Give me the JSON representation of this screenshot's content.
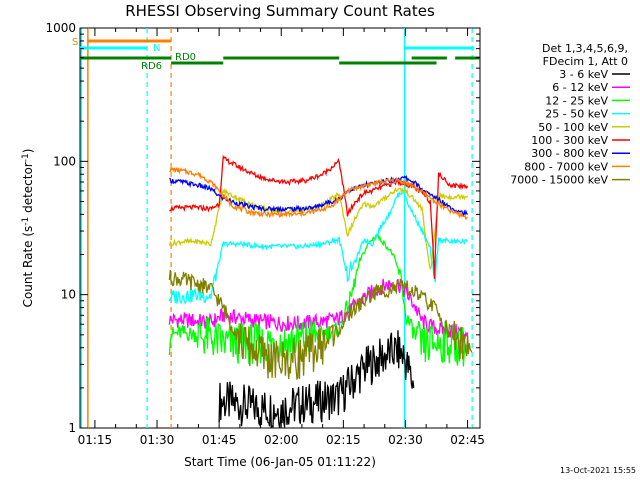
{
  "chart_data": {
    "type": "line",
    "title": "RHESSI Observing Summary Count Rates",
    "xlabel": "Start Time (06-Jan-05 01:11:22)",
    "ylabel_main": "Count Rate (s",
    "ylabel_sup1": "-1",
    "ylabel_mid": " detector",
    "ylabel_sup2": "-1",
    "ylabel_end": ")",
    "y_scale": "log",
    "ylim": [
      1,
      1000
    ],
    "xlim_minutes": [
      71.4,
      168.0
    ],
    "x_ticks": [
      {
        "label": "01:15",
        "minute": 75
      },
      {
        "label": "01:30",
        "minute": 90
      },
      {
        "label": "01:45",
        "minute": 105
      },
      {
        "label": "02:00",
        "minute": 120
      },
      {
        "label": "02:15",
        "minute": 135
      },
      {
        "label": "02:30",
        "minute": 150
      },
      {
        "label": "02:45",
        "minute": 165
      }
    ],
    "y_ticks": [
      {
        "label": "1",
        "value": 1
      },
      {
        "label": "10",
        "value": 10
      },
      {
        "label": "100",
        "value": 100
      },
      {
        "label": "1000",
        "value": 1000
      }
    ],
    "legend_header": [
      "Det 1,3,4,5,6,9,",
      "FDecim 1, Att 0"
    ],
    "legend_placement": "right",
    "series": [
      {
        "name": "3 - 6 keV",
        "color": "#000000",
        "points": [
          [
            105,
            1.6
          ],
          [
            110,
            1.5
          ],
          [
            115,
            1.4
          ],
          [
            120,
            1.4
          ],
          [
            125,
            1.5
          ],
          [
            130,
            1.6
          ],
          [
            134,
            1.7
          ],
          [
            137,
            2.2
          ],
          [
            140,
            2.8
          ],
          [
            143,
            3.2
          ],
          [
            146,
            3.6
          ],
          [
            148,
            3.8
          ],
          [
            149.5,
            3.5
          ],
          [
            151,
            2.6
          ],
          [
            152,
            2.0
          ]
        ]
      },
      {
        "name": "6 - 12 keV",
        "color": "#ff00ff",
        "points": [
          [
            93,
            6.5
          ],
          [
            98,
            6.4
          ],
          [
            103,
            6.2
          ],
          [
            106,
            7.0
          ],
          [
            110,
            6.7
          ],
          [
            115,
            6.3
          ],
          [
            120,
            6.1
          ],
          [
            125,
            6.1
          ],
          [
            130,
            6.3
          ],
          [
            134,
            6.6
          ],
          [
            137,
            7.8
          ],
          [
            140,
            9.5
          ],
          [
            143,
            11
          ],
          [
            146,
            12
          ],
          [
            148,
            12.3
          ],
          [
            150,
            10.5
          ],
          [
            152,
            8.5
          ],
          [
            154,
            6.3
          ],
          [
            156,
            5.8
          ],
          [
            159,
            5.4
          ],
          [
            162,
            5.3
          ],
          [
            165,
            5.2
          ]
        ]
      },
      {
        "name": "12 - 25 keV",
        "color": "#00ff00",
        "points": [
          [
            93,
            5.0
          ],
          [
            96,
            5.2
          ],
          [
            100,
            5.0
          ],
          [
            104,
            4.6
          ],
          [
            106,
            4.3
          ],
          [
            110,
            4.3
          ],
          [
            115,
            4.3
          ],
          [
            120,
            4.4
          ],
          [
            125,
            4.6
          ],
          [
            130,
            5.2
          ],
          [
            134,
            5.5
          ],
          [
            137,
            10
          ],
          [
            139,
            18
          ],
          [
            141,
            24
          ],
          [
            143,
            28
          ],
          [
            145,
            24
          ],
          [
            147,
            20
          ],
          [
            149,
            13
          ],
          [
            150,
            7
          ],
          [
            152,
            5.2
          ],
          [
            154,
            4.0
          ],
          [
            156,
            4.3
          ],
          [
            160,
            4.4
          ],
          [
            165,
            4.0
          ]
        ]
      },
      {
        "name": "25 - 50 keV",
        "color": "#00ffff",
        "points": [
          [
            93,
            9.5
          ],
          [
            96,
            9.8
          ],
          [
            100,
            10
          ],
          [
            103,
            9.8
          ],
          [
            106,
            24
          ],
          [
            110,
            24
          ],
          [
            115,
            23
          ],
          [
            120,
            23
          ],
          [
            125,
            23
          ],
          [
            130,
            24
          ],
          [
            134,
            26
          ],
          [
            136,
            14
          ],
          [
            138,
            18
          ],
          [
            140,
            26
          ],
          [
            142,
            24
          ],
          [
            144,
            32
          ],
          [
            146,
            40
          ],
          [
            148,
            55
          ],
          [
            149.5,
            60
          ],
          [
            151,
            45
          ],
          [
            152,
            40
          ],
          [
            154,
            30
          ],
          [
            156,
            22
          ],
          [
            157,
            12
          ],
          [
            158,
            26
          ],
          [
            161,
            25
          ],
          [
            165,
            25
          ]
        ]
      },
      {
        "name": "50 - 100 keV",
        "color": "#cccc00",
        "points": [
          [
            93,
            24
          ],
          [
            96,
            25
          ],
          [
            100,
            25
          ],
          [
            103,
            24
          ],
          [
            106,
            60
          ],
          [
            110,
            52
          ],
          [
            114,
            46
          ],
          [
            118,
            43
          ],
          [
            122,
            42
          ],
          [
            126,
            43
          ],
          [
            130,
            47
          ],
          [
            134,
            57
          ],
          [
            136,
            28
          ],
          [
            138,
            38
          ],
          [
            140,
            48
          ],
          [
            142,
            46
          ],
          [
            144,
            50
          ],
          [
            146,
            56
          ],
          [
            148,
            62
          ],
          [
            150,
            60
          ],
          [
            152,
            52
          ],
          [
            154,
            44
          ],
          [
            156,
            14
          ],
          [
            158,
            55
          ],
          [
            161,
            54
          ],
          [
            165,
            55
          ]
        ]
      },
      {
        "name": "100 - 300 keV",
        "color": "#ff0000",
        "points": [
          [
            93,
            44
          ],
          [
            96,
            45
          ],
          [
            100,
            45
          ],
          [
            103,
            44
          ],
          [
            105,
            48
          ],
          [
            106,
            105
          ],
          [
            110,
            90
          ],
          [
            114,
            78
          ],
          [
            118,
            72
          ],
          [
            122,
            70
          ],
          [
            126,
            72
          ],
          [
            130,
            80
          ],
          [
            134,
            100
          ],
          [
            136,
            40
          ],
          [
            138,
            50
          ],
          [
            140,
            58
          ],
          [
            142,
            60
          ],
          [
            144,
            64
          ],
          [
            146,
            67
          ],
          [
            148,
            70
          ],
          [
            150,
            68
          ],
          [
            152,
            64
          ],
          [
            154,
            58
          ],
          [
            156,
            50
          ],
          [
            157,
            15
          ],
          [
            158,
            80
          ],
          [
            161,
            66
          ],
          [
            165,
            65
          ]
        ]
      },
      {
        "name": "300 - 800 keV",
        "color": "#0000ff",
        "points": [
          [
            93,
            72
          ],
          [
            96,
            70
          ],
          [
            100,
            66
          ],
          [
            103,
            62
          ],
          [
            105,
            55
          ],
          [
            108,
            50
          ],
          [
            112,
            46
          ],
          [
            116,
            44
          ],
          [
            120,
            44
          ],
          [
            124,
            44
          ],
          [
            128,
            45
          ],
          [
            132,
            50
          ],
          [
            134,
            52
          ],
          [
            136,
            60
          ],
          [
            140,
            66
          ],
          [
            144,
            70
          ],
          [
            148,
            74
          ],
          [
            150,
            75
          ],
          [
            152,
            70
          ],
          [
            155,
            58
          ],
          [
            158,
            52
          ],
          [
            161,
            45
          ],
          [
            165,
            40
          ]
        ]
      },
      {
        "name": "800 - 7000 keV",
        "color": "#ff8000",
        "points": [
          [
            93,
            87
          ],
          [
            96,
            85
          ],
          [
            100,
            80
          ],
          [
            103,
            70
          ],
          [
            105,
            60
          ],
          [
            108,
            47
          ],
          [
            112,
            42
          ],
          [
            116,
            40
          ],
          [
            120,
            40
          ],
          [
            124,
            40
          ],
          [
            128,
            42
          ],
          [
            132,
            46
          ],
          [
            134,
            52
          ],
          [
            136,
            60
          ],
          [
            140,
            66
          ],
          [
            144,
            70
          ],
          [
            148,
            72
          ],
          [
            150,
            70
          ],
          [
            152,
            65
          ],
          [
            155,
            56
          ],
          [
            158,
            48
          ],
          [
            161,
            42
          ],
          [
            165,
            38
          ]
        ]
      },
      {
        "name": "7000 - 15000 keV",
        "color": "#808000",
        "points": [
          [
            93,
            13.5
          ],
          [
            96,
            13
          ],
          [
            100,
            12
          ],
          [
            103,
            11
          ],
          [
            105,
            9
          ],
          [
            107,
            7
          ],
          [
            110,
            4.5
          ],
          [
            114,
            3.8
          ],
          [
            118,
            3.2
          ],
          [
            122,
            3.2
          ],
          [
            126,
            3.5
          ],
          [
            130,
            4.2
          ],
          [
            134,
            5.5
          ],
          [
            137,
            7.5
          ],
          [
            140,
            9
          ],
          [
            143,
            10.5
          ],
          [
            146,
            11
          ],
          [
            149,
            11.5
          ],
          [
            151,
            11
          ],
          [
            153,
            10
          ],
          [
            155,
            9
          ],
          [
            157,
            8
          ],
          [
            160,
            5.6
          ],
          [
            163,
            4.5
          ],
          [
            166,
            3.7
          ]
        ]
      }
    ],
    "attenuator_lines": [
      {
        "minute": 71.7,
        "color": "#00ffff"
      },
      {
        "minute": 73.3,
        "color": "#ff8000"
      },
      {
        "minute": 149.8,
        "color": "#00ffff"
      }
    ],
    "dashed_lines": [
      {
        "minute": 87.6,
        "color": "#00ffff"
      },
      {
        "minute": 93.4,
        "color": "#ff8000"
      },
      {
        "minute": 166.1,
        "color": "#00ffff"
      }
    ],
    "flags": {
      "saa": {
        "label": "S",
        "color": "#ff8000",
        "segments": [
          [
            73.3,
            93.4
          ]
        ]
      },
      "night": {
        "label": "N",
        "color": "#00ffff",
        "segments": [
          [
            71.4,
            87.6
          ],
          [
            149.8,
            166.6
          ]
        ]
      },
      "rd0": {
        "label": "RD0",
        "color": "#008000",
        "segments": [
          [
            71.4,
            93.4
          ],
          [
            106,
            134
          ],
          [
            151.5,
            160
          ],
          [
            162,
            168
          ]
        ]
      },
      "rd6": {
        "label": "RD6",
        "color": "#008000",
        "segments": [
          [
            93.4,
            106
          ],
          [
            134,
            157.5
          ]
        ]
      }
    },
    "timestamp": "13-Oct-2021 15:55"
  }
}
